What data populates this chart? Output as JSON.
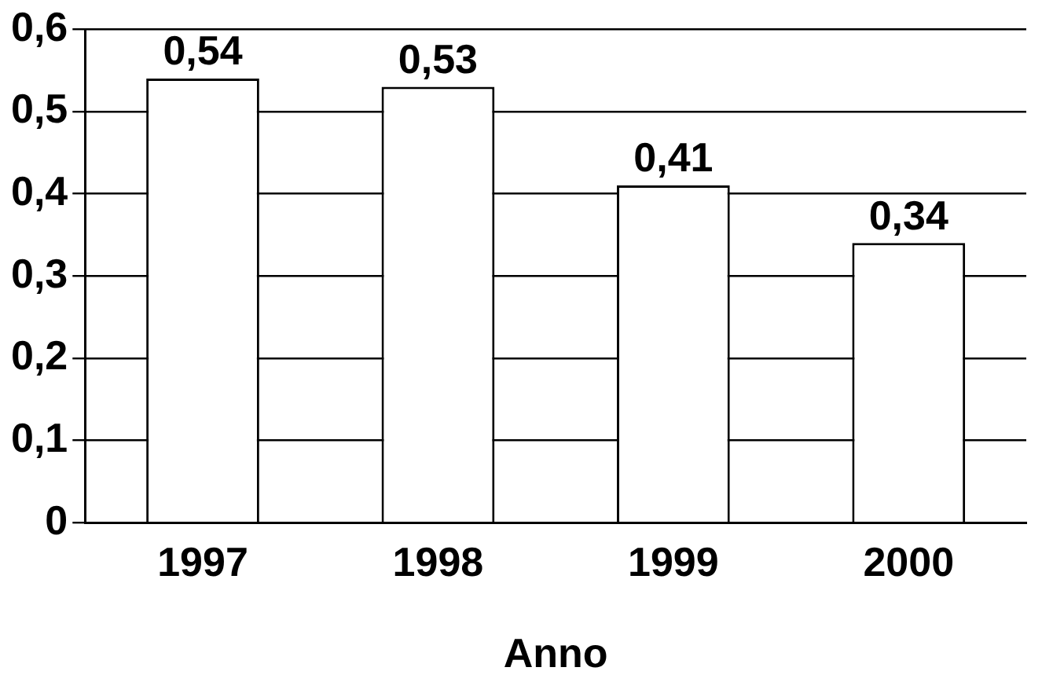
{
  "chart_data": {
    "type": "bar",
    "xlabel": "Anno",
    "categories": [
      "1997",
      "1998",
      "1999",
      "2000"
    ],
    "values": [
      0.54,
      0.53,
      0.41,
      0.34
    ],
    "value_labels": [
      "0,54",
      "0,53",
      "0,41",
      "0,34"
    ],
    "color": "#ffffff",
    "ylim": [
      0,
      0.6
    ],
    "yticks": [
      0,
      {
        "value": 0.1,
        "label": "0,1"
      },
      {
        "value": 0.2,
        "label": "0,2"
      },
      {
        "value": 0.3,
        "label": "0,3"
      },
      {
        "value": 0.4,
        "label": "0,4"
      },
      {
        "value": 0.5,
        "label": "0,5"
      },
      {
        "value": 0.6,
        "label": "0,6"
      }
    ],
    "grid": "y"
  }
}
